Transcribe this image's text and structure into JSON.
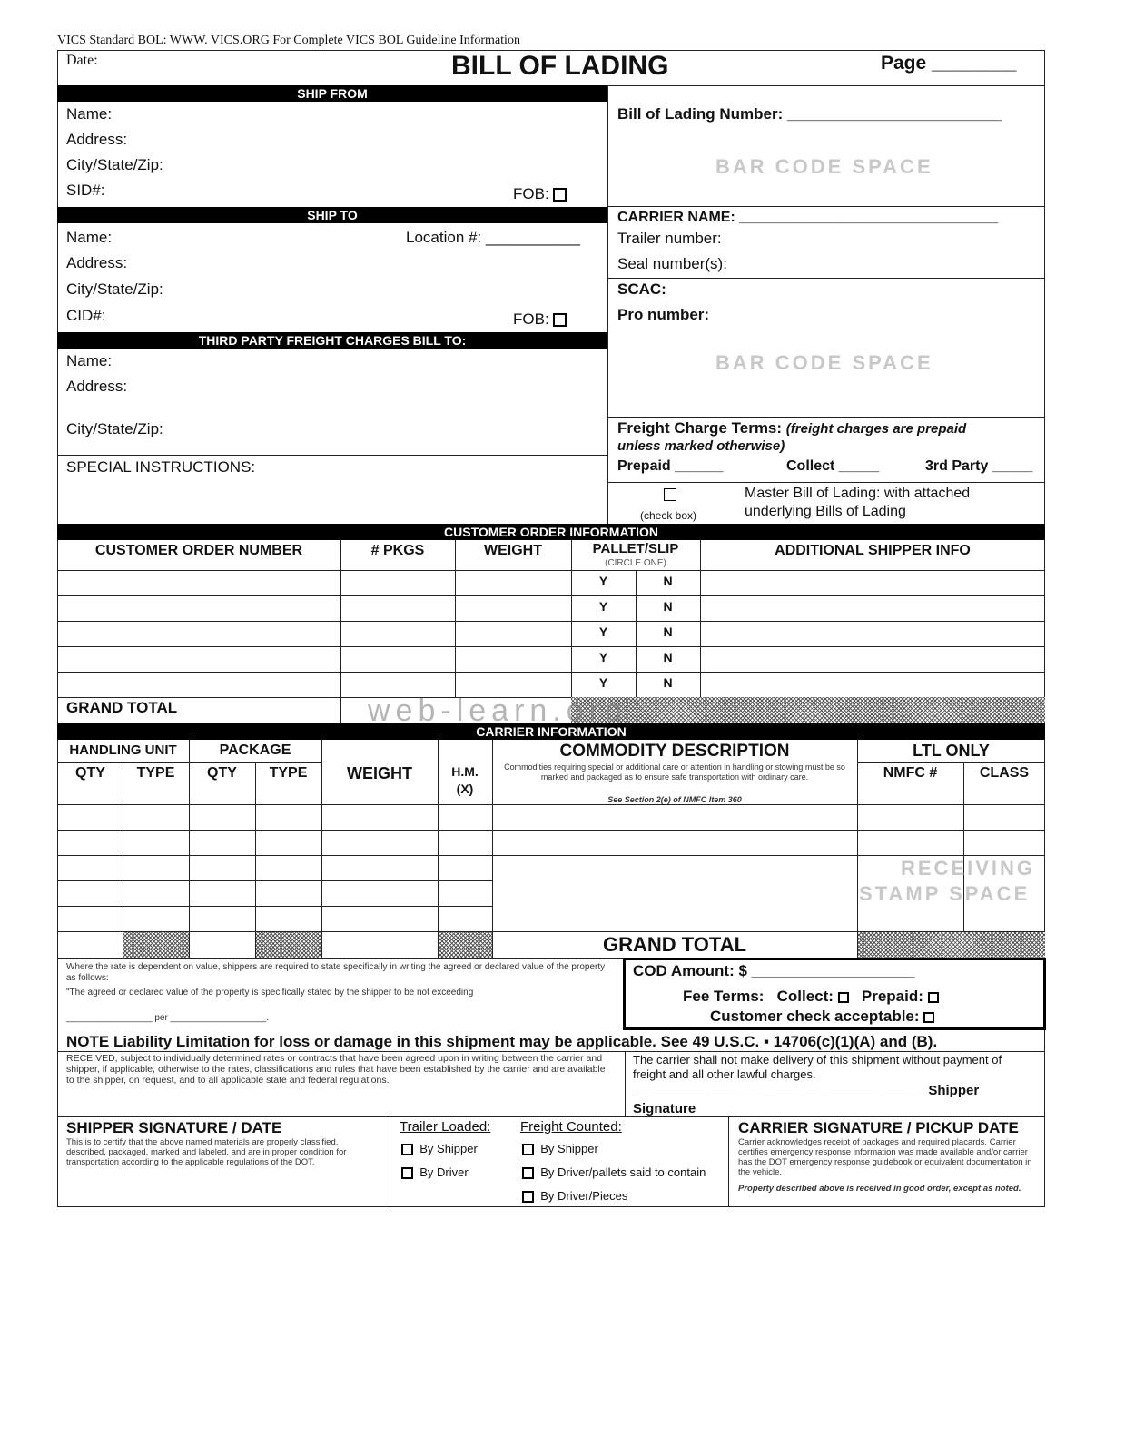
{
  "header_note": "VICS Standard BOL: WWW. VICS.ORG  For Complete VICS BOL Guideline Information",
  "date_label": "Date:",
  "title": "BILL OF LADING",
  "page_label": "Page ________",
  "ship_from": {
    "title": "SHIP FROM",
    "name": "Name:",
    "address": "Address:",
    "city": "City/State/Zip:",
    "sid": "SID#:",
    "fob": "FOB:"
  },
  "ship_to": {
    "title": "SHIP TO",
    "name": "Name:",
    "location": "Location #: ___________",
    "address": "Address:",
    "city": "City/State/Zip:",
    "cid": "CID#:",
    "fob": "FOB:"
  },
  "third_party": {
    "title": "THIRD PARTY FREIGHT CHARGES BILL TO:",
    "name": "Name:",
    "address": "Address:",
    "city": "City/State/Zip:"
  },
  "special_instructions": "SPECIAL INSTRUCTIONS:",
  "right": {
    "bol_number": "Bill of Lading Number: _________________________",
    "barcode": "BAR CODE SPACE",
    "carrier_name": "CARRIER NAME:  ________________________________",
    "trailer": "Trailer number:",
    "seal": "Seal number(s):",
    "scac": "SCAC:",
    "pro": "Pro number:",
    "barcode2": "BAR CODE SPACE",
    "freight_terms": "Freight Charge Terms:",
    "freight_terms_note": "(freight charges are prepaid",
    "freight_terms_note2": "unless marked otherwise)",
    "prepaid": "Prepaid ______",
    "collect": "Collect _____",
    "third": "3rd Party _____",
    "check_box": "(check box)",
    "master1": "Master Bill of Lading: with attached",
    "master2": "underlying Bills of Lading"
  },
  "customer_order": {
    "title": "CUSTOMER ORDER INFORMATION",
    "headers": [
      "CUSTOMER ORDER NUMBER",
      "# PKGS",
      "WEIGHT",
      "PALLET/SLIP",
      "ADDITIONAL SHIPPER INFO"
    ],
    "circle_one": "(CIRCLE ONE)",
    "yes": "Y",
    "no": "N",
    "grand_total": "GRAND TOTAL",
    "watermark": "web-learn.org"
  },
  "carrier_info": {
    "title": "CARRIER INFORMATION",
    "handling_unit": "HANDLING UNIT",
    "package": "PACKAGE",
    "qty": "QTY",
    "type": "TYPE",
    "weight": "WEIGHT",
    "hm": "H.M.",
    "hm_x": "(X)",
    "commodity": "COMMODITY DESCRIPTION",
    "commodity_note": "Commodities requiring special or additional care or attention in handling or stowing must be so marked and packaged as to ensure safe transportation with ordinary care.",
    "commodity_ref": "See Section 2(e) of NMFC Item 360",
    "ltl": "LTL ONLY",
    "nmfc": "NMFC #",
    "class": "CLASS",
    "receiving1": "RECEIVING",
    "receiving2": "STAMP SPACE",
    "grand_total": "GRAND TOTAL"
  },
  "value": {
    "text1": "Where the rate is dependent on value, shippers are required to state specifically in writing the agreed or declared value of the property as follows:",
    "text2": "\"The agreed or declared value of the property is specifically stated by the shipper to be not exceeding",
    "per": "_________________ per ___________________."
  },
  "cod": {
    "amount": "COD Amount:  $ ___________________",
    "fee_terms": "Fee Terms:",
    "collect": "Collect:",
    "prepaid": "Prepaid:",
    "check": "Customer check acceptable:"
  },
  "note": "NOTE  Liability Limitation for loss or damage in this shipment may be applicable.  See 49 U.S.C. ▪ 14706(c)(1)(A) and (B).",
  "received": "RECEIVED, subject to individually determined rates or contracts that have been agreed upon in writing between the carrier and shipper, if applicable, otherwise to the rates, classifications and rules that have been established by the carrier and are available to the shipper, on request, and to all applicable state and federal regulations.",
  "carrier_delivery": "The carrier shall not make delivery of this shipment without payment of freight and all other lawful charges.",
  "shipper_line": "_______________________________________Shipper",
  "signature": "Signature",
  "shipper_sig": {
    "title": "SHIPPER SIGNATURE / DATE",
    "text": "This is to certify that the above named materials are properly classified, described, packaged, marked and labeled, and are in proper condition for transportation according to the applicable regulations of the DOT."
  },
  "trailer_loaded": {
    "title": "Trailer Loaded:",
    "options": [
      "By Shipper",
      "By Driver"
    ]
  },
  "freight_counted": {
    "title": "Freight Counted:",
    "options": [
      "By Shipper",
      "By Driver/pallets said to contain",
      "By Driver/Pieces"
    ]
  },
  "carrier_sig": {
    "title": "CARRIER SIGNATURE / PICKUP DATE",
    "text": "Carrier acknowledges receipt of packages and required placards. Carrier certifies emergency response information was made available and/or carrier has the DOT emergency response guidebook or equivalent documentation in the vehicle.",
    "received": "Property described above is received in good order, except as noted."
  }
}
